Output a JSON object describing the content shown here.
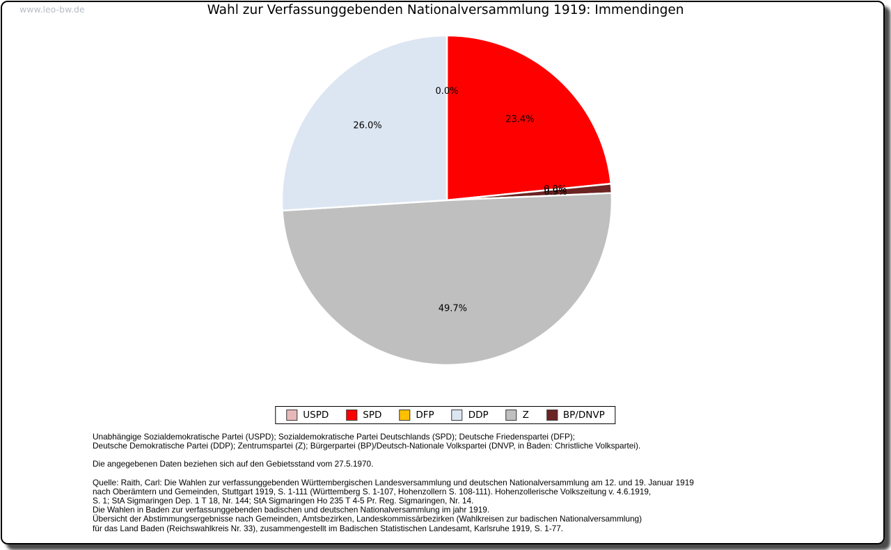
{
  "watermark": "www.leo-bw.de",
  "chart_data": {
    "type": "pie",
    "title": "Wahl zur Verfassunggebenden Nationalversammlung 1919: Immendingen",
    "unit": "percent",
    "direction": "clockwise",
    "start_angle": "12 o'clock (north)",
    "wedge_border_color": "#ffffff",
    "label_color": "#000000",
    "slices": [
      {
        "party": "USPD",
        "value": 0.0,
        "label": "0.0%",
        "color": "#e6b9b8"
      },
      {
        "party": "SPD",
        "value": 23.4,
        "label": "23.4%",
        "color": "#ff0000"
      },
      {
        "party": "DFP",
        "value": 0.0,
        "label": "0.0%",
        "color": "#ffc000"
      },
      {
        "party": "BP/DNVP",
        "value": 0.9,
        "label": "0.9%",
        "color": "#6b2423"
      },
      {
        "party": "Z",
        "value": 49.7,
        "label": "49.7%",
        "color": "#bfbfbf"
      },
      {
        "party": "DDP",
        "value": 26.0,
        "label": "26.0%",
        "color": "#dce6f2"
      }
    ],
    "legend": [
      {
        "label": "USPD",
        "color": "#e6b9b8"
      },
      {
        "label": "SPD",
        "color": "#ff0000"
      },
      {
        "label": "DFP",
        "color": "#ffc000"
      },
      {
        "label": "DDP",
        "color": "#dce6f2"
      },
      {
        "label": "Z",
        "color": "#bfbfbf"
      },
      {
        "label": "BP/DNVP",
        "color": "#6b2423"
      }
    ],
    "legend_position": "bottom-center"
  },
  "notes": {
    "blocks": [
      [
        "Unabhängige Sozialdemokratische Partei (USPD); Sozialdemokratische Partei Deutschlands (SPD); Deutsche Friedenspartei (DFP);",
        "Deutsche Demokratische Partei (DDP); Zentrumspartei (Z); Bürgerpartei (BP)/Deutsch-Nationale Volkspartei (DNVP, in Baden: Christliche Volkspartei)."
      ],
      [
        "Die angegebenen Daten beziehen sich auf den Gebietsstand vom 27.5.1970."
      ],
      [
        "Quelle: Raith, Carl: Die Wahlen zur verfassunggebenden Württembergischen Landesversammlung und deutschen Nationalversammlung am 12. und 19. Januar 1919",
        "nach Oberämtern und Gemeinden, Stuttgart 1919, S. 1-111 (Württemberg S. 1-107, Hohenzollern S. 108-111). Hohenzollerische Volkszeitung v. 4.6.1919,",
        "S. 1; StA Sigmaringen Dep. 1 T 18, Nr. 144; StA Sigmaringen Ho 235 T 4-5 Pr. Reg. Sigmaringen, Nr. 14.",
        "Die Wahlen in Baden zur verfassunggebenden badischen und deutschen Nationalversammlung im jahr 1919.",
        "Übersicht der Abstimmungsergebnisse nach Gemeinden, Amtsbezirken, Landeskommissärbezirken (Wahlkreisen zur badischen Nationalversammlung)",
        "für das Land Baden (Reichswahlkreis Nr. 33), zusammengestellt im Badischen Statistischen Landesamt, Karlsruhe 1919, S. 1-77."
      ]
    ]
  }
}
